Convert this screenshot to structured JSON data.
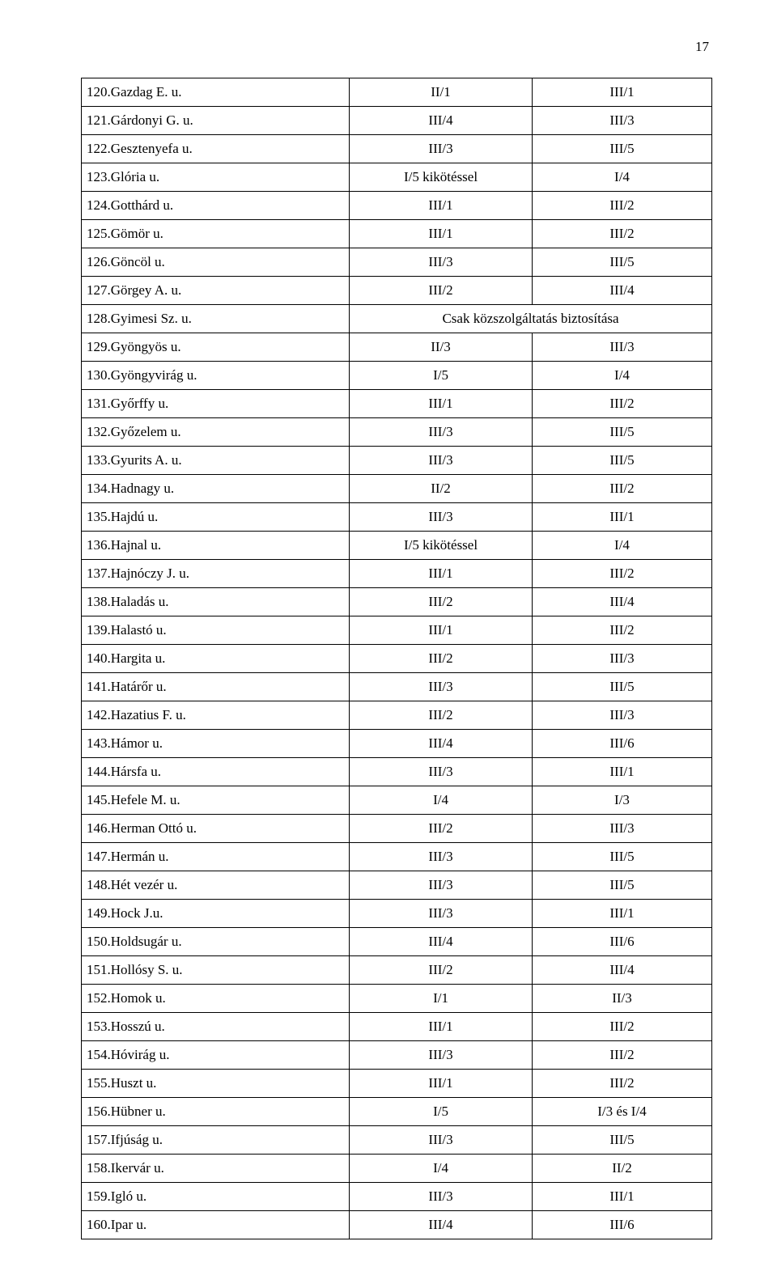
{
  "page_number": "17",
  "rows": [
    {
      "num": "120.",
      "name": "Gazdag E. u.",
      "c2": "II/1",
      "c3": "III/1"
    },
    {
      "num": "121.",
      "name": "Gárdonyi G. u.",
      "c2": "III/4",
      "c3": "III/3"
    },
    {
      "num": "122.",
      "name": "Gesztenyefa u.",
      "c2": "III/3",
      "c3": "III/5"
    },
    {
      "num": "123.",
      "name": "Glória u.",
      "c2": "I/5 kikötéssel",
      "c3": "I/4"
    },
    {
      "num": "124.",
      "name": "Gotthárd u.",
      "c2": "III/1",
      "c3": "III/2"
    },
    {
      "num": "125.",
      "name": "Gömör u.",
      "c2": "III/1",
      "c3": "III/2"
    },
    {
      "num": "126.",
      "name": "Göncöl u.",
      "c2": "III/3",
      "c3": "III/5"
    },
    {
      "num": "127.",
      "name": "Görgey A. u.",
      "c2": "III/2",
      "c3": "III/4"
    },
    {
      "num": "128.",
      "name": "Gyimesi Sz. u.",
      "merged": "Csak közszolgáltatás biztosítása"
    },
    {
      "num": "129.",
      "name": "Gyöngyös u.",
      "c2": "II/3",
      "c3": "III/3"
    },
    {
      "num": "130.",
      "name": "Gyöngyvirág u.",
      "c2": "I/5",
      "c3": "I/4"
    },
    {
      "num": "131.",
      "name": "Győrffy u.",
      "c2": "III/1",
      "c3": "III/2"
    },
    {
      "num": "132.",
      "name": "Győzelem u.",
      "c2": "III/3",
      "c3": "III/5"
    },
    {
      "num": "133.",
      "name": "Gyurits A. u.",
      "c2": "III/3",
      "c3": "III/5"
    },
    {
      "num": "134.",
      "name": "Hadnagy u.",
      "c2": "II/2",
      "c3": "III/2"
    },
    {
      "num": "135.",
      "name": "Hajdú u.",
      "c2": "III/3",
      "c3": "III/1"
    },
    {
      "num": "136.",
      "name": "Hajnal u.",
      "c2": "I/5 kikötéssel",
      "c3": "I/4"
    },
    {
      "num": "137.",
      "name": "Hajnóczy J. u.",
      "c2": "III/1",
      "c3": "III/2"
    },
    {
      "num": "138.",
      "name": "Haladás u.",
      "c2": "III/2",
      "c3": "III/4"
    },
    {
      "num": "139.",
      "name": "Halastó u.",
      "c2": "III/1",
      "c3": "III/2"
    },
    {
      "num": "140.",
      "name": "Hargita u.",
      "c2": "III/2",
      "c3": "III/3"
    },
    {
      "num": "141.",
      "name": "Határőr u.",
      "c2": "III/3",
      "c3": "III/5"
    },
    {
      "num": "142.",
      "name": "Hazatius F. u.",
      "c2": "III/2",
      "c3": "III/3"
    },
    {
      "num": "143.",
      "name": "Hámor u.",
      "c2": "III/4",
      "c3": "III/6"
    },
    {
      "num": "144.",
      "name": "Hársfa u.",
      "c2": "III/3",
      "c3": "III/1"
    },
    {
      "num": "145.",
      "name": "Hefele M. u.",
      "c2": "I/4",
      "c3": "I/3"
    },
    {
      "num": "146.",
      "name": "Herman Ottó u.",
      "c2": "III/2",
      "c3": "III/3"
    },
    {
      "num": "147.",
      "name": "Hermán u.",
      "c2": "III/3",
      "c3": "III/5"
    },
    {
      "num": "148.",
      "name": "Hét vezér u.",
      "c2": "III/3",
      "c3": "III/5"
    },
    {
      "num": "149.",
      "name": "Hock J.u.",
      "c2": "III/3",
      "c3": "III/1"
    },
    {
      "num": "150.",
      "name": "Holdsugár u.",
      "c2": "III/4",
      "c3": "III/6"
    },
    {
      "num": "151.",
      "name": "Hollósy S. u.",
      "c2": "III/2",
      "c3": "III/4"
    },
    {
      "num": "152.",
      "name": "Homok u.",
      "c2": "I/1",
      "c3": "II/3"
    },
    {
      "num": "153.",
      "name": "Hosszú u.",
      "c2": "III/1",
      "c3": "III/2"
    },
    {
      "num": "154.",
      "name": "Hóvirág u.",
      "c2": "III/3",
      "c3": "III/2"
    },
    {
      "num": "155.",
      "name": "Huszt u.",
      "c2": "III/1",
      "c3": "III/2"
    },
    {
      "num": "156.",
      "name": "Hübner u.",
      "c2": "I/5",
      "c3": "I/3 és I/4"
    },
    {
      "num": "157.",
      "name": "Ifjúság u.",
      "c2": "III/3",
      "c3": "III/5"
    },
    {
      "num": "158.",
      "name": "Ikervár u.",
      "c2": "I/4",
      "c3": "II/2"
    },
    {
      "num": "159.",
      "name": "Igló u.",
      "c2": "III/3",
      "c3": "III/1"
    },
    {
      "num": "160.",
      "name": "Ipar u.",
      "c2": "III/4",
      "c3": "III/6"
    }
  ]
}
